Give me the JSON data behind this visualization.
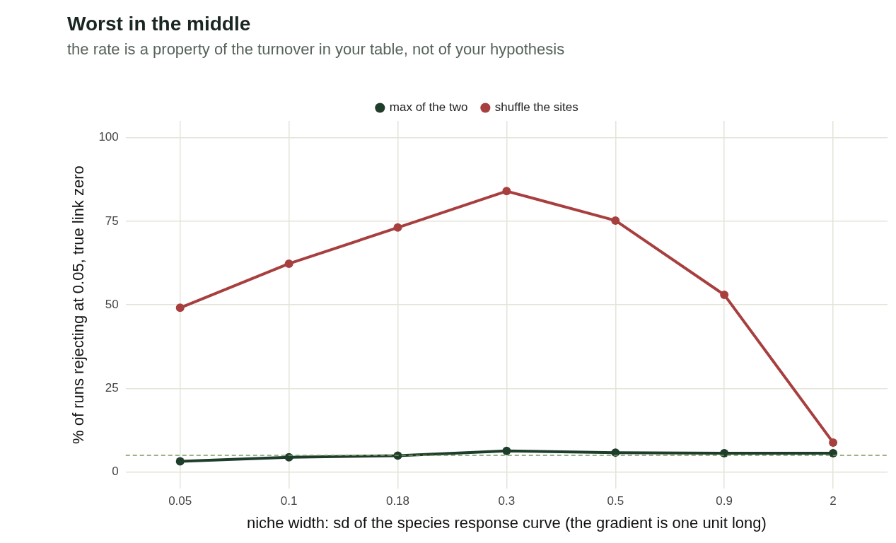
{
  "chart_data": {
    "type": "line",
    "title": "Worst in the middle",
    "subtitle": "the rate is a property of the turnover in your table, not of your hypothesis",
    "xlabel": "niche width: sd of the species response curve (the gradient is one unit long)",
    "ylabel": "% of runs rejecting at 0.05, true link zero",
    "categories": [
      "0.05",
      "0.1",
      "0.18",
      "0.3",
      "0.5",
      "0.9",
      "2"
    ],
    "series": [
      {
        "name": "max of the two",
        "color": "#1f3d2b",
        "values": [
          3.2,
          4.4,
          4.9,
          6.3,
          5.8,
          5.6,
          5.6
        ]
      },
      {
        "name": "shuffle the sites",
        "color": "#a83f3f",
        "values": [
          49.1,
          62.3,
          73.1,
          84.0,
          75.2,
          53.0,
          8.8
        ]
      }
    ],
    "ylim": [
      -5,
      105
    ],
    "yticks": [
      0,
      25,
      50,
      75,
      100
    ],
    "grid": true,
    "legend": "top",
    "marker": "circle",
    "line_style": "solid",
    "ref_lines": [
      {
        "axis": "y",
        "value": 5,
        "color": "#7a9a5e",
        "line_style": "dashed"
      }
    ]
  }
}
